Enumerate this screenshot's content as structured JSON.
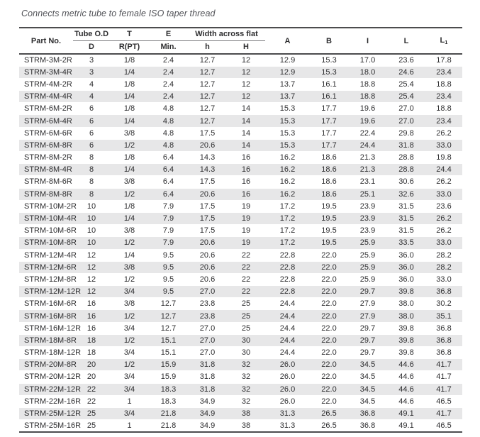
{
  "title": "Connects metric tube to female ISO taper thread",
  "colors": {
    "stripe": "#e7e7e8",
    "border_dark": "#4c4c4e",
    "rule_light": "#77777a",
    "text": "#2d2d2f",
    "title_text": "#515257"
  },
  "table": {
    "headers": {
      "part_no": "Part No.",
      "tube_od": "Tube O.D",
      "t": "T",
      "e": "E",
      "width_across_flat": "Width across flat",
      "d": "D",
      "r_pt": "R(PT)",
      "min": "Min.",
      "h_lower": "h",
      "h_upper": "H",
      "a": "A",
      "b": "B",
      "i": "I",
      "l": "L",
      "l1": {
        "label": "L",
        "sub": "1"
      }
    },
    "rows": [
      [
        "STRM-3M-2R",
        "3",
        "1/8",
        "2.4",
        "12.7",
        "12",
        "12.9",
        "15.3",
        "17.0",
        "23.6",
        "17.8"
      ],
      [
        "STRM-3M-4R",
        "3",
        "1/4",
        "2.4",
        "12.7",
        "12",
        "12.9",
        "15.3",
        "18.0",
        "24.6",
        "23.4"
      ],
      [
        "STRM-4M-2R",
        "4",
        "1/8",
        "2.4",
        "12.7",
        "12",
        "13.7",
        "16.1",
        "18.8",
        "25.4",
        "18.8"
      ],
      [
        "STRM-4M-4R",
        "4",
        "1/4",
        "2.4",
        "12.7",
        "12",
        "13.7",
        "16.1",
        "18.8",
        "25.4",
        "23.4"
      ],
      [
        "STRM-6M-2R",
        "6",
        "1/8",
        "4.8",
        "12.7",
        "14",
        "15.3",
        "17.7",
        "19.6",
        "27.0",
        "18.8"
      ],
      [
        "STRM-6M-4R",
        "6",
        "1/4",
        "4.8",
        "12.7",
        "14",
        "15.3",
        "17.7",
        "19.6",
        "27.0",
        "23.4"
      ],
      [
        "STRM-6M-6R",
        "6",
        "3/8",
        "4.8",
        "17.5",
        "14",
        "15.3",
        "17.7",
        "22.4",
        "29.8",
        "26.2"
      ],
      [
        "STRM-6M-8R",
        "6",
        "1/2",
        "4.8",
        "20.6",
        "14",
        "15.3",
        "17.7",
        "24.4",
        "31.8",
        "33.0"
      ],
      [
        "STRM-8M-2R",
        "8",
        "1/8",
        "6.4",
        "14.3",
        "16",
        "16.2",
        "18.6",
        "21.3",
        "28.8",
        "19.8"
      ],
      [
        "STRM-8M-4R",
        "8",
        "1/4",
        "6.4",
        "14.3",
        "16",
        "16.2",
        "18.6",
        "21.3",
        "28.8",
        "24.4"
      ],
      [
        "STRM-8M-6R",
        "8",
        "3/8",
        "6.4",
        "17.5",
        "16",
        "16.2",
        "18.6",
        "23.1",
        "30.6",
        "26.2"
      ],
      [
        "STRM-8M-8R",
        "8",
        "1/2",
        "6.4",
        "20.6",
        "16",
        "16.2",
        "18.6",
        "25.1",
        "32.6",
        "33.0"
      ],
      [
        "STRM-10M-2R",
        "10",
        "1/8",
        "7.9",
        "17.5",
        "19",
        "17.2",
        "19.5",
        "23.9",
        "31.5",
        "23.6"
      ],
      [
        "STRM-10M-4R",
        "10",
        "1/4",
        "7.9",
        "17.5",
        "19",
        "17.2",
        "19.5",
        "23.9",
        "31.5",
        "26.2"
      ],
      [
        "STRM-10M-6R",
        "10",
        "3/8",
        "7.9",
        "17.5",
        "19",
        "17.2",
        "19.5",
        "23.9",
        "31.5",
        "26.2"
      ],
      [
        "STRM-10M-8R",
        "10",
        "1/2",
        "7.9",
        "20.6",
        "19",
        "17.2",
        "19.5",
        "25.9",
        "33.5",
        "33.0"
      ],
      [
        "STRM-12M-4R",
        "12",
        "1/4",
        "9.5",
        "20.6",
        "22",
        "22.8",
        "22.0",
        "25.9",
        "36.0",
        "28.2"
      ],
      [
        "STRM-12M-6R",
        "12",
        "3/8",
        "9.5",
        "20.6",
        "22",
        "22.8",
        "22.0",
        "25.9",
        "36.0",
        "28.2"
      ],
      [
        "STRM-12M-8R",
        "12",
        "1/2",
        "9.5",
        "20.6",
        "22",
        "22.8",
        "22.0",
        "25.9",
        "36.0",
        "33.0"
      ],
      [
        "STRM-12M-12R",
        "12",
        "3/4",
        "9.5",
        "27.0",
        "22",
        "22.8",
        "22.0",
        "29.7",
        "39.8",
        "36.8"
      ],
      [
        "STRM-16M-6R",
        "16",
        "3/8",
        "12.7",
        "23.8",
        "25",
        "24.4",
        "22.0",
        "27.9",
        "38.0",
        "30.2"
      ],
      [
        "STRM-16M-8R",
        "16",
        "1/2",
        "12.7",
        "23.8",
        "25",
        "24.4",
        "22.0",
        "27.9",
        "38.0",
        "35.1"
      ],
      [
        "STRM-16M-12R",
        "16",
        "3/4",
        "12.7",
        "27.0",
        "25",
        "24.4",
        "22.0",
        "29.7",
        "39.8",
        "36.8"
      ],
      [
        "STRM-18M-8R",
        "18",
        "1/2",
        "15.1",
        "27.0",
        "30",
        "24.4",
        "22.0",
        "29.7",
        "39.8",
        "36.8"
      ],
      [
        "STRM-18M-12R",
        "18",
        "3/4",
        "15.1",
        "27.0",
        "30",
        "24.4",
        "22.0",
        "29.7",
        "39.8",
        "36.8"
      ],
      [
        "STRM-20M-8R",
        "20",
        "1/2",
        "15.9",
        "31.8",
        "32",
        "26.0",
        "22.0",
        "34.5",
        "44.6",
        "41.7"
      ],
      [
        "STRM-20M-12R",
        "20",
        "3/4",
        "15.9",
        "31.8",
        "32",
        "26.0",
        "22.0",
        "34.5",
        "44.6",
        "41.7"
      ],
      [
        "STRM-22M-12R",
        "22",
        "3/4",
        "18.3",
        "31.8",
        "32",
        "26.0",
        "22.0",
        "34.5",
        "44.6",
        "41.7"
      ],
      [
        "STRM-22M-16R",
        "22",
        "1",
        "18.3",
        "34.9",
        "32",
        "26.0",
        "22.0",
        "34.5",
        "44.6",
        "46.5"
      ],
      [
        "STRM-25M-12R",
        "25",
        "3/4",
        "21.8",
        "34.9",
        "38",
        "31.3",
        "26.5",
        "36.8",
        "49.1",
        "41.7"
      ],
      [
        "STRM-25M-16R",
        "25",
        "1",
        "21.8",
        "34.9",
        "38",
        "31.3",
        "26.5",
        "36.8",
        "49.1",
        "46.5"
      ]
    ]
  }
}
